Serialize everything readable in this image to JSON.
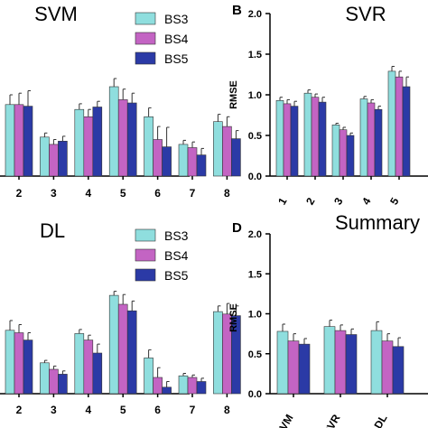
{
  "colors": {
    "BS3": "#8fdede",
    "BS4": "#c364c3",
    "BS5": "#2b3aa6"
  },
  "legend_entries": [
    "BS3",
    "BS4",
    "BS5"
  ],
  "chart_data": [
    {
      "type": "bar",
      "panel_letter": "",
      "title": "SVM",
      "ylabel": "",
      "ylim": [
        0,
        2.0
      ],
      "categories": [
        "2",
        "3",
        "4",
        "5",
        "6",
        "7",
        "8"
      ],
      "series": [
        {
          "name": "BS3",
          "values": [
            0.88,
            0.48,
            0.82,
            1.1,
            0.73,
            0.39,
            0.67
          ],
          "errors": [
            0.12,
            0.05,
            0.07,
            0.1,
            0.11,
            0.05,
            0.09
          ]
        },
        {
          "name": "BS4",
          "values": [
            0.88,
            0.39,
            0.73,
            0.94,
            0.45,
            0.35,
            0.61
          ],
          "errors": [
            0.14,
            0.06,
            0.09,
            0.13,
            0.16,
            0.07,
            0.12
          ]
        },
        {
          "name": "BS5",
          "values": [
            0.86,
            0.43,
            0.85,
            0.9,
            0.36,
            0.26,
            0.46
          ],
          "errors": [
            0.19,
            0.06,
            0.07,
            0.12,
            0.24,
            0.08,
            0.1
          ]
        }
      ],
      "legend": "top-right"
    },
    {
      "type": "bar",
      "panel_letter": "B",
      "title": "SVR",
      "ylabel": "RMSE",
      "ylim": [
        0,
        2.0
      ],
      "yticks": [
        "0.0",
        "0.5",
        "1.0",
        "1.5",
        "2.0"
      ],
      "categories": [
        "1",
        "2",
        "3",
        "4",
        "5"
      ],
      "series": [
        {
          "name": "BS3",
          "values": [
            0.93,
            1.02,
            0.63,
            0.95,
            1.29
          ],
          "errors": [
            0.04,
            0.04,
            0.02,
            0.03,
            0.06
          ]
        },
        {
          "name": "BS4",
          "values": [
            0.89,
            0.97,
            0.57,
            0.9,
            1.22
          ],
          "errors": [
            0.05,
            0.04,
            0.03,
            0.04,
            0.07
          ]
        },
        {
          "name": "BS5",
          "values": [
            0.86,
            0.91,
            0.5,
            0.82,
            1.1
          ],
          "errors": [
            0.06,
            0.06,
            0.03,
            0.04,
            0.12
          ]
        }
      ]
    },
    {
      "type": "bar",
      "panel_letter": "",
      "title": "DL",
      "ylabel": "",
      "ylim": [
        0,
        2.0
      ],
      "categories": [
        "2",
        "3",
        "4",
        "5",
        "6",
        "7",
        "8"
      ],
      "series": [
        {
          "name": "BS3",
          "values": [
            0.78,
            0.38,
            0.74,
            1.21,
            0.44,
            0.22,
            1.01
          ],
          "errors": [
            0.12,
            0.03,
            0.05,
            0.05,
            0.1,
            0.03,
            0.07
          ]
        },
        {
          "name": "BS4",
          "values": [
            0.75,
            0.3,
            0.66,
            1.1,
            0.2,
            0.2,
            0.98
          ],
          "errors": [
            0.1,
            0.04,
            0.06,
            0.12,
            0.12,
            0.03,
            0.13
          ]
        },
        {
          "name": "BS5",
          "values": [
            0.66,
            0.24,
            0.5,
            1.02,
            0.08,
            0.15,
            0.96
          ],
          "errors": [
            0.09,
            0.04,
            0.11,
            0.12,
            0.07,
            0.04,
            0.12
          ]
        }
      ],
      "legend": "top-right"
    },
    {
      "type": "bar",
      "panel_letter": "D",
      "title": "Summary",
      "ylabel": "RMSE",
      "ylim": [
        0,
        2.0
      ],
      "yticks": [
        "0.0",
        "0.5",
        "1.0",
        "1.5",
        "2.0"
      ],
      "categories": [
        "SVM",
        "SVR",
        "DL"
      ],
      "series": [
        {
          "name": "BS3",
          "values": [
            0.78,
            0.84,
            0.79
          ],
          "errors": [
            0.09,
            0.08,
            0.11
          ]
        },
        {
          "name": "BS4",
          "values": [
            0.66,
            0.79,
            0.66
          ],
          "errors": [
            0.09,
            0.07,
            0.09
          ]
        },
        {
          "name": "BS5",
          "values": [
            0.62,
            0.74,
            0.59
          ],
          "errors": [
            0.07,
            0.07,
            0.11
          ]
        }
      ]
    }
  ]
}
